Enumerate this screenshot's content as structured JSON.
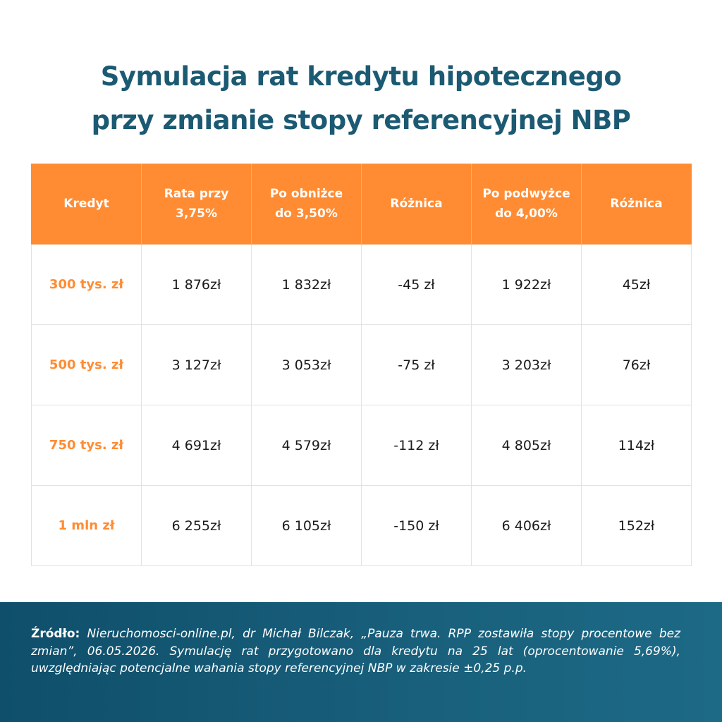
{
  "title": {
    "line1": "Symulacja rat kredytu hipotecznego",
    "line2": "przy zmianie stopy referencyjnej NBP"
  },
  "table": {
    "headers": [
      [
        "Kredyt"
      ],
      [
        "Rata przy",
        "3,75%"
      ],
      [
        "Po obniżce",
        "do 3,50%"
      ],
      [
        "Różnica"
      ],
      [
        "Po podwyżce",
        "do 4,00%"
      ],
      [
        "Różnica"
      ]
    ],
    "rows": [
      [
        "300 tys. zł",
        "1 876zł",
        "1 832zł",
        "-45 zł",
        "1 922zł",
        "45zł"
      ],
      [
        "500 tys. zł",
        "3 127zł",
        "3 053zł",
        "-75 zł",
        "3 203zł",
        "76zł"
      ],
      [
        "750 tys. zł",
        "4 691zł",
        "4 579zł",
        "-112 zł",
        "4 805zł",
        "114zł"
      ],
      [
        "1 mln zł",
        "6 255zł",
        "6 105zł",
        "-150 zł",
        "6 406zł",
        "152zł"
      ]
    ]
  },
  "source": {
    "label": "Źródło:",
    "text": " Nieruchomosci-online.pl, dr Michał Bilczak, „Pauza trwa. RPP zostawiła stopy procentowe bez zmian”, 06.05.2026. Symulację rat przygotowano dla kredytu na 25 lat (oprocentowanie 5,69%), uwzględniając potencjalne wahania stopy referencyjnej NBP w zakresie ±0,25 p.p."
  },
  "colors": {
    "title": "#1b5a72",
    "header_bg": "#ff8c33",
    "accent_text": "#ff8c33",
    "footer_bg": "#0f4f6b"
  }
}
